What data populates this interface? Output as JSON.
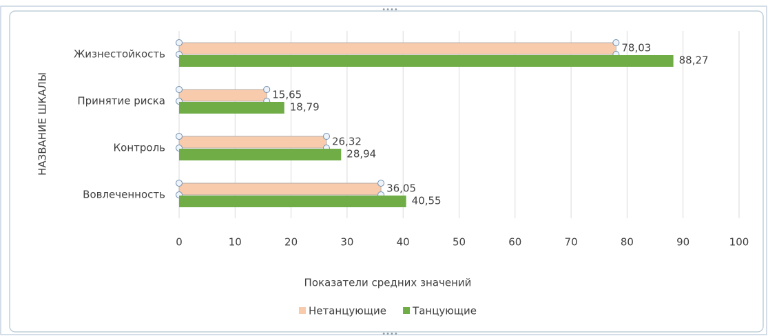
{
  "chart_data": {
    "type": "barh",
    "categories": [
      "Жизнестойкость",
      "Принятие риска",
      "Контроль",
      "Вовлеченность"
    ],
    "series": [
      {
        "name": "Нетанцующие",
        "color": "#f8cbad",
        "values": [
          78.03,
          15.65,
          26.32,
          36.05
        ],
        "value_labels": [
          "78,03",
          "15,65",
          "26,32",
          "36,05"
        ]
      },
      {
        "name": "Танцующие",
        "color": "#70ad47",
        "values": [
          88.27,
          18.79,
          28.94,
          40.55
        ],
        "value_labels": [
          "88,27",
          "18,79",
          "28,94",
          "40,55"
        ]
      }
    ],
    "xlabel": "Показатели средних значений",
    "ylabel": "НАЗВАНИЕ ШКАЛЫ",
    "xlim": [
      0,
      100
    ],
    "xticks": [
      0,
      10,
      20,
      30,
      40,
      50,
      60,
      70,
      80,
      90,
      100
    ],
    "grid": true,
    "legend": "bottom"
  }
}
